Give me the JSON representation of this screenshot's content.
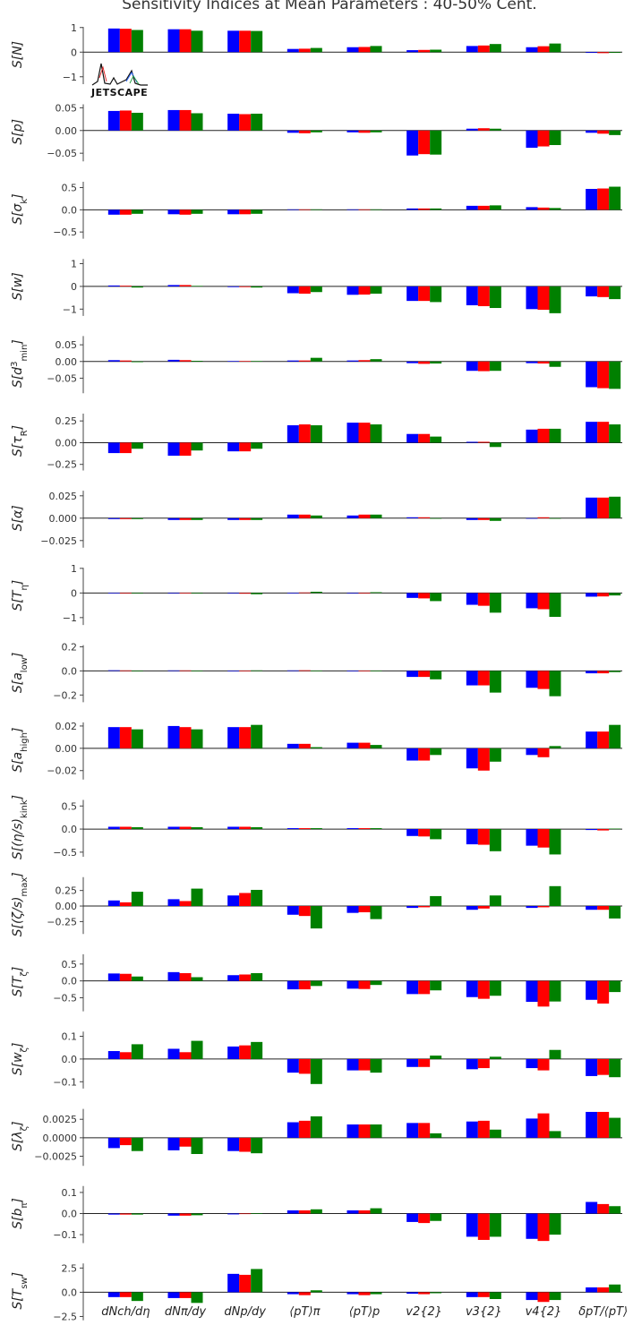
{
  "title": "Sensitivity Indices at Mean Parameters : 40-50% Cent.",
  "logo": {
    "text": "JETSCAPE"
  },
  "colors": {
    "series1": "#0000ff",
    "series2": "#ff0000",
    "series3": "#008000",
    "axis": "#333333"
  },
  "chart_data": {
    "type": "bar",
    "categories": [
      "dN_{ch}/dη",
      "dN_π/dy",
      "dN_p/dy",
      "⟨p_T⟩_π",
      "⟨p_T⟩_p",
      "v_2{2}",
      "v_3{2}",
      "v_4{2}",
      "δp_T/⟨p_T⟩"
    ],
    "category_labels": [
      "dNch/dη",
      "dNπ/dy",
      "dNp/dy",
      "⟨pT⟩π",
      "⟨pT⟩p",
      "v2{2}",
      "v3{2}",
      "v4{2}",
      "δpT/⟨pT⟩"
    ],
    "panels": [
      {
        "ylabel": "S[N]",
        "ylim": [
          -1.3,
          1.1
        ],
        "ticks": [
          "1",
          "0",
          "−1"
        ],
        "tick_values": [
          1,
          0,
          -1
        ],
        "series": [
          [
            0.96,
            0.93,
            0.87,
            0.13,
            0.2,
            0.08,
            0.25,
            0.2,
            -0.03
          ],
          [
            0.95,
            0.93,
            0.87,
            0.14,
            0.21,
            0.09,
            0.27,
            0.24,
            -0.04
          ],
          [
            0.9,
            0.87,
            0.86,
            0.17,
            0.25,
            0.1,
            0.33,
            0.35,
            -0.03
          ]
        ]
      },
      {
        "ylabel": "S[p]",
        "ylim": [
          -0.068,
          0.062
        ],
        "ticks": [
          "0.05",
          "0.00",
          "−0.05"
        ],
        "tick_values": [
          0.05,
          0,
          -0.05
        ],
        "series": [
          [
            0.043,
            0.045,
            0.037,
            -0.005,
            -0.004,
            -0.055,
            0.004,
            -0.038,
            -0.005
          ],
          [
            0.044,
            0.045,
            0.036,
            -0.006,
            -0.005,
            -0.052,
            0.005,
            -0.035,
            -0.007
          ],
          [
            0.039,
            0.038,
            0.037,
            -0.004,
            -0.004,
            -0.053,
            0.004,
            -0.032,
            -0.01
          ]
        ]
      },
      {
        "ylabel": "S[σ_k]",
        "ylim": [
          -0.65,
          0.68
        ],
        "ticks": [
          "0.5",
          "0.0",
          "−0.5"
        ],
        "tick_values": [
          0.5,
          0,
          -0.5
        ],
        "series": [
          [
            -0.11,
            -0.1,
            -0.1,
            0.01,
            0.01,
            0.03,
            0.09,
            0.06,
            0.47
          ],
          [
            -0.11,
            -0.11,
            -0.1,
            0.01,
            0.01,
            0.03,
            0.09,
            0.05,
            0.48
          ],
          [
            -0.09,
            -0.09,
            -0.09,
            0.01,
            0.01,
            0.03,
            0.1,
            0.04,
            0.52
          ]
        ]
      },
      {
        "ylabel": "S[w]",
        "ylim": [
          -1.3,
          1.3
        ],
        "ticks": [
          "1",
          "0",
          "−1"
        ],
        "tick_values": [
          1,
          0,
          -1
        ],
        "series": [
          [
            0.04,
            0.06,
            -0.03,
            -0.3,
            -0.37,
            -0.64,
            -0.83,
            -1.0,
            -0.44
          ],
          [
            0.03,
            0.06,
            -0.03,
            -0.32,
            -0.36,
            -0.64,
            -0.87,
            -1.03,
            -0.47
          ],
          [
            -0.05,
            0.02,
            -0.05,
            -0.25,
            -0.32,
            -0.69,
            -0.95,
            -1.18,
            -0.56
          ]
        ]
      },
      {
        "ylabel": "S[d^3_min]",
        "ylim": [
          -0.095,
          0.082
        ],
        "ticks": [
          "0.05",
          "0.00",
          "−0.05"
        ],
        "tick_values": [
          0.05,
          0,
          -0.05
        ],
        "series": [
          [
            0.004,
            0.005,
            0.001,
            0.003,
            0.003,
            -0.005,
            -0.028,
            -0.005,
            -0.077
          ],
          [
            0.003,
            0.004,
            0.001,
            0.003,
            0.004,
            -0.007,
            -0.029,
            -0.006,
            -0.08
          ],
          [
            -0.002,
            0.002,
            0.001,
            0.011,
            0.007,
            -0.006,
            -0.028,
            -0.016,
            -0.082
          ]
        ]
      },
      {
        "ylabel": "S[τ_R]",
        "ylim": [
          -0.32,
          0.36
        ],
        "ticks": [
          "0.25",
          "0.00",
          "−0.25"
        ],
        "tick_values": [
          0.25,
          0,
          -0.25
        ],
        "series": [
          [
            -0.12,
            -0.15,
            -0.1,
            0.2,
            0.23,
            0.1,
            0.01,
            0.15,
            0.24
          ],
          [
            -0.12,
            -0.15,
            -0.1,
            0.21,
            0.23,
            0.1,
            0.01,
            0.16,
            0.24
          ],
          [
            -0.07,
            -0.09,
            -0.07,
            0.2,
            0.21,
            0.07,
            -0.05,
            0.16,
            0.21
          ]
        ]
      },
      {
        "ylabel": "S[α]",
        "ylim": [
          -0.033,
          0.033
        ],
        "ticks": [
          "0.025",
          "0.000",
          "−0.025"
        ],
        "tick_values": [
          0.025,
          0,
          -0.025
        ],
        "series": [
          [
            -0.001,
            -0.002,
            -0.002,
            0.004,
            0.003,
            0.001,
            -0.002,
            0.0,
            0.023
          ],
          [
            -0.001,
            -0.002,
            -0.002,
            0.004,
            0.004,
            0.001,
            -0.002,
            0.001,
            0.023
          ],
          [
            -0.001,
            -0.002,
            -0.002,
            0.003,
            0.004,
            0.0,
            -0.003,
            0.0,
            0.024
          ]
        ]
      },
      {
        "ylabel": "S[T_η]",
        "ylim": [
          -1.3,
          1.1
        ],
        "ticks": [
          "1",
          "0",
          "−1"
        ],
        "tick_values": [
          1,
          0,
          -1
        ],
        "series": [
          [
            0.01,
            0.0,
            -0.02,
            0.01,
            0.0,
            -0.2,
            -0.48,
            -0.62,
            -0.15
          ],
          [
            0.0,
            0.01,
            -0.03,
            0.02,
            0.0,
            -0.22,
            -0.52,
            -0.66,
            -0.14
          ],
          [
            -0.01,
            -0.01,
            -0.05,
            0.05,
            0.03,
            -0.33,
            -0.8,
            -0.97,
            -0.1
          ]
        ]
      },
      {
        "ylabel": "S[a_low]",
        "ylim": [
          -0.26,
          0.23
        ],
        "ticks": [
          "0.2",
          "0.0",
          "−0.2"
        ],
        "tick_values": [
          0.2,
          0,
          -0.2
        ],
        "series": [
          [
            0.005,
            0.004,
            0.002,
            0.004,
            0.002,
            -0.05,
            -0.12,
            -0.14,
            -0.02
          ],
          [
            0.004,
            0.004,
            0.003,
            0.005,
            0.003,
            -0.05,
            -0.12,
            -0.15,
            -0.02
          ],
          [
            0.001,
            0.002,
            0.004,
            0.003,
            0.003,
            -0.07,
            -0.18,
            -0.21,
            -0.01
          ]
        ]
      },
      {
        "ylabel": "S[a_high]",
        "ylim": [
          -0.028,
          0.025
        ],
        "ticks": [
          "0.02",
          "0.00",
          "−0.02"
        ],
        "tick_values": [
          0.02,
          0,
          -0.02
        ],
        "series": [
          [
            0.019,
            0.02,
            0.019,
            0.004,
            0.005,
            -0.011,
            -0.018,
            -0.006,
            0.015
          ],
          [
            0.019,
            0.019,
            0.019,
            0.004,
            0.005,
            -0.011,
            -0.02,
            -0.008,
            0.015
          ],
          [
            0.017,
            0.017,
            0.021,
            0.001,
            0.003,
            -0.006,
            -0.012,
            0.002,
            0.021
          ]
        ]
      },
      {
        "ylabel": "S[(η/s)_kink]",
        "ylim": [
          -0.6,
          0.68
        ],
        "ticks": [
          "0.5",
          "0.0",
          "−0.5"
        ],
        "tick_values": [
          0.5,
          0,
          -0.5
        ],
        "series": [
          [
            0.05,
            0.05,
            0.05,
            0.02,
            0.02,
            -0.15,
            -0.33,
            -0.36,
            -0.02
          ],
          [
            0.05,
            0.05,
            0.05,
            0.02,
            0.02,
            -0.16,
            -0.34,
            -0.4,
            -0.03
          ],
          [
            0.04,
            0.04,
            0.04,
            0.02,
            0.02,
            -0.22,
            -0.48,
            -0.55,
            0.01
          ]
        ]
      },
      {
        "ylabel": "S[(ζ/s)_max]",
        "ylim": [
          -0.45,
          0.5
        ],
        "ticks": [
          "0.25",
          "0.00",
          "−0.25"
        ],
        "tick_values": [
          0.25,
          0,
          -0.25
        ],
        "series": [
          [
            0.09,
            0.11,
            0.17,
            -0.14,
            -0.11,
            -0.03,
            -0.06,
            -0.03,
            -0.06
          ],
          [
            0.06,
            0.08,
            0.21,
            -0.16,
            -0.1,
            -0.02,
            -0.04,
            -0.02,
            -0.06
          ],
          [
            0.23,
            0.28,
            0.26,
            -0.36,
            -0.21,
            0.16,
            0.17,
            0.32,
            -0.2
          ]
        ]
      },
      {
        "ylabel": "S[T_ζ]",
        "ylim": [
          -0.9,
          0.85
        ],
        "ticks": [
          "0.5",
          "0.0",
          "−0.5"
        ],
        "tick_values": [
          0.5,
          0,
          -0.5
        ],
        "series": [
          [
            0.22,
            0.26,
            0.17,
            -0.25,
            -0.23,
            -0.39,
            -0.48,
            -0.62,
            -0.56
          ],
          [
            0.21,
            0.23,
            0.19,
            -0.25,
            -0.24,
            -0.39,
            -0.53,
            -0.76,
            -0.67
          ],
          [
            0.13,
            0.11,
            0.23,
            -0.15,
            -0.12,
            -0.28,
            -0.44,
            -0.61,
            -0.33
          ]
        ]
      },
      {
        "ylabel": "S[w_ζ]",
        "ylim": [
          -0.13,
          0.13
        ],
        "ticks": [
          "0.1",
          "0.0",
          "−0.1"
        ],
        "tick_values": [
          0.1,
          0,
          -0.1
        ],
        "series": [
          [
            0.035,
            0.045,
            0.055,
            -0.06,
            -0.05,
            -0.035,
            -0.045,
            -0.04,
            -0.075
          ],
          [
            0.03,
            0.03,
            0.06,
            -0.065,
            -0.05,
            -0.035,
            -0.04,
            -0.05,
            -0.07
          ],
          [
            0.065,
            0.08,
            0.075,
            -0.11,
            -0.06,
            0.015,
            0.01,
            0.04,
            -0.08
          ]
        ]
      },
      {
        "ylabel": "S[λ_ζ]",
        "ylim": [
          -0.0038,
          0.0042
        ],
        "ticks": [
          "0.0025",
          "0.0000",
          "−0.0025"
        ],
        "tick_values": [
          0.0025,
          0,
          -0.0025
        ],
        "series": [
          [
            -0.0014,
            -0.0017,
            -0.0018,
            0.0021,
            0.0018,
            0.002,
            0.0022,
            0.0026,
            0.0035
          ],
          [
            -0.001,
            -0.0012,
            -0.0019,
            0.0023,
            0.0018,
            0.002,
            0.0023,
            0.0033,
            0.0035
          ],
          [
            -0.0018,
            -0.0022,
            -0.0021,
            0.0029,
            0.0018,
            0.0006,
            0.0011,
            0.0009,
            0.0027
          ]
        ]
      },
      {
        "ylabel": "S[b_π]",
        "ylim": [
          -0.14,
          0.14
        ],
        "ticks": [
          "0.1",
          "0.0",
          "−0.1"
        ],
        "tick_values": [
          0.1,
          0,
          -0.1
        ],
        "series": [
          [
            -0.005,
            -0.01,
            -0.004,
            0.015,
            0.015,
            -0.04,
            -0.11,
            -0.12,
            0.055
          ],
          [
            -0.005,
            -0.01,
            -0.002,
            0.015,
            0.015,
            -0.045,
            -0.125,
            -0.13,
            0.045
          ],
          [
            -0.005,
            -0.008,
            0.002,
            0.02,
            0.025,
            -0.035,
            -0.11,
            -0.1,
            0.035
          ]
        ]
      },
      {
        "ylabel": "S[T_sw]",
        "ylim": [
          -2.9,
          3.2
        ],
        "ticks": [
          "2.5",
          "0.0",
          "−2.5"
        ],
        "tick_values": [
          2.5,
          0,
          -2.5
        ],
        "series": [
          [
            -0.5,
            -0.6,
            1.9,
            -0.2,
            -0.2,
            -0.15,
            -0.5,
            -0.8,
            0.5
          ],
          [
            -0.5,
            -0.6,
            1.8,
            -0.3,
            -0.3,
            -0.2,
            -0.5,
            -1.0,
            0.5
          ],
          [
            -0.9,
            -1.1,
            2.4,
            0.2,
            -0.2,
            -0.1,
            -0.7,
            -0.8,
            0.8
          ]
        ]
      }
    ]
  }
}
